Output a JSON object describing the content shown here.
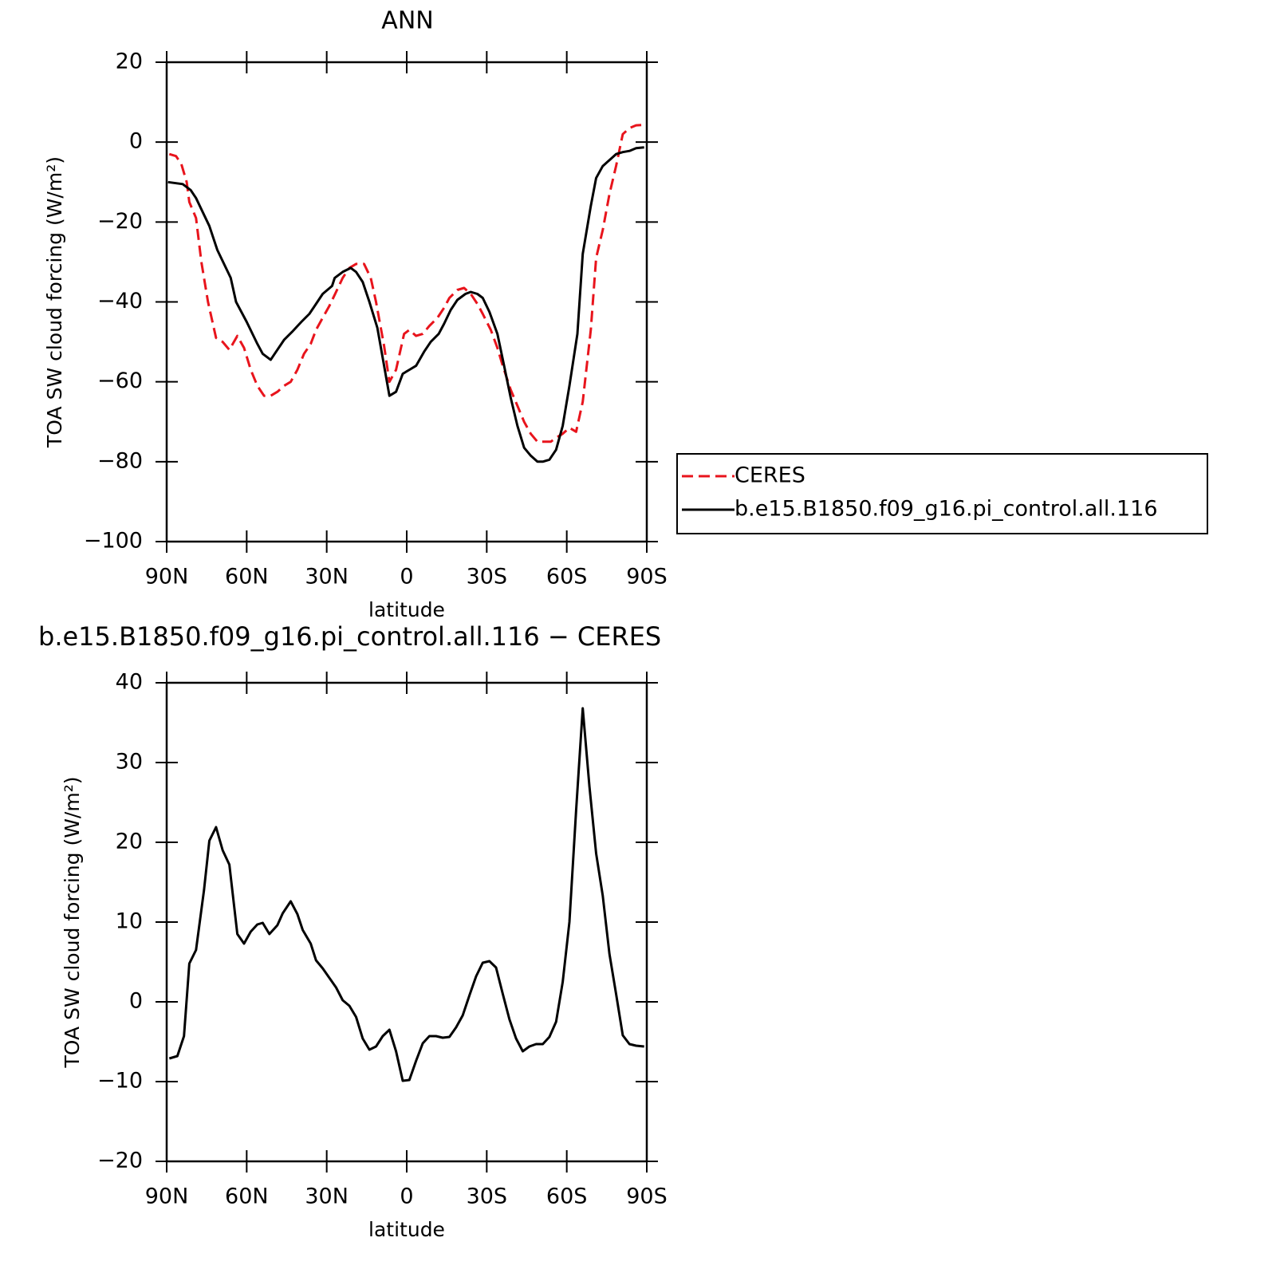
{
  "chart_data": [
    {
      "type": "line",
      "title": "ANN",
      "x_label": "latitude",
      "y_label": "TOA SW cloud forcing (W/m²)",
      "xlim": [
        90,
        -90
      ],
      "xticks": [
        {
          "value": 90,
          "label": "90N"
        },
        {
          "value": 60,
          "label": "60N"
        },
        {
          "value": 30,
          "label": "30N"
        },
        0,
        {
          "value": -30,
          "label": "30S"
        },
        {
          "value": -60,
          "label": "60S"
        },
        {
          "value": -90,
          "label": "90S"
        }
      ],
      "ylim": [
        -100,
        20
      ],
      "yticks": [
        {
          "value": -100,
          "label": "−100"
        },
        {
          "value": -80,
          "label": "−80"
        },
        {
          "value": -60,
          "label": "−60"
        },
        {
          "value": -40,
          "label": "−40"
        },
        {
          "value": -20,
          "label": "−20"
        },
        0,
        20
      ],
      "legend": "right",
      "series": [
        {
          "name": "CERES",
          "color": "#e8141c",
          "dashed": true,
          "x": [
            89,
            86.5,
            84.5,
            82.5,
            81.5,
            79,
            77,
            74.5,
            71.5,
            69,
            66.5,
            63.5,
            61,
            58.5,
            56,
            53.5,
            51,
            48.5,
            46,
            43.5,
            41,
            38.5,
            36,
            34,
            31.5,
            29,
            26.5,
            24,
            21.5,
            19,
            16,
            13.5,
            11.5,
            8.5,
            6.5,
            4,
            1,
            -1,
            -3.5,
            -6,
            -8.5,
            -11.5,
            -14,
            -16,
            -19,
            -21.5,
            -24,
            -26.5,
            -28.5,
            -31.5,
            -34,
            -36,
            -39,
            -41.5,
            -44,
            -46.5,
            -49,
            -51,
            -54,
            -56,
            -58.5,
            -61,
            -63.5,
            -66,
            -69,
            -71,
            -73.5,
            -76,
            -78.5,
            -81,
            -83.5,
            -86,
            -89
          ],
          "values": [
            -3,
            -3.5,
            -5.5,
            -10,
            -15,
            -19,
            -30,
            -40,
            -49,
            -50,
            -52,
            -48.5,
            -51.5,
            -57,
            -61,
            -63.5,
            -63.5,
            -62.5,
            -61,
            -60,
            -57,
            -53,
            -50.5,
            -47,
            -44,
            -41,
            -37.5,
            -34,
            -31.5,
            -30.5,
            -30.5,
            -34,
            -40,
            -51,
            -60,
            -57,
            -48,
            -47,
            -48.5,
            -48,
            -46,
            -44,
            -41.5,
            -39,
            -37,
            -36.5,
            -38,
            -40.5,
            -43,
            -47,
            -51.5,
            -56,
            -62,
            -66,
            -70,
            -73,
            -75,
            -75,
            -75,
            -74,
            -73,
            -71.5,
            -72.5,
            -65,
            -47,
            -29,
            -22,
            -13,
            -6,
            2,
            3.5,
            4.2,
            4.3
          ]
        },
        {
          "name": "b.e15.B1850.f09_g16.pi_control.all.116",
          "color": "#000000",
          "dashed": false,
          "x": [
            89.5,
            84,
            81,
            79,
            74,
            71,
            66,
            64,
            60,
            56,
            54,
            51,
            49,
            46,
            43,
            39.5,
            36.5,
            34,
            31.5,
            28,
            27,
            24,
            21,
            19,
            16.5,
            14,
            11,
            6.5,
            4,
            1.5,
            -1,
            -3.5,
            -6.5,
            -9,
            -12,
            -14,
            -16.5,
            -19,
            -22,
            -24,
            -26.5,
            -28.5,
            -31,
            -34,
            -36.5,
            -39,
            -41.5,
            -44,
            -46.5,
            -49,
            -51,
            -53.5,
            -56,
            -58.5,
            -61,
            -64,
            -66,
            -69,
            -71,
            -73.5,
            -76,
            -78.5,
            -81,
            -83.5,
            -86,
            -89
          ],
          "values": [
            -10,
            -10.5,
            -12,
            -14,
            -21,
            -27,
            -34,
            -40,
            -45,
            -50.5,
            -53,
            -54.5,
            -52.5,
            -49.5,
            -47.5,
            -45,
            -43,
            -40.5,
            -38,
            -36,
            -34,
            -32.5,
            -31.5,
            -32.5,
            -35,
            -40,
            -46.5,
            -63.5,
            -62.5,
            -58,
            -57,
            -56,
            -52.5,
            -50,
            -48,
            -45.5,
            -42,
            -39.5,
            -38,
            -37.5,
            -38,
            -39,
            -42.5,
            -48,
            -56,
            -64,
            -71,
            -76.5,
            -78.5,
            -80,
            -80,
            -79.5,
            -77,
            -71,
            -61,
            -48,
            -28,
            -16,
            -9,
            -6,
            -4.5,
            -3,
            -2.5,
            -2.2,
            -1.5,
            -1.3
          ]
        }
      ]
    },
    {
      "type": "line",
      "title": "b.e15.B1850.f09_g16.pi_control.all.116 − CERES",
      "x_label": "latitude",
      "y_label": "TOA SW cloud forcing (W/m²)",
      "xlim": [
        90,
        -90
      ],
      "xticks": [
        {
          "value": 90,
          "label": "90N"
        },
        {
          "value": 60,
          "label": "60N"
        },
        {
          "value": 30,
          "label": "30N"
        },
        0,
        {
          "value": -30,
          "label": "30S"
        },
        {
          "value": -60,
          "label": "60S"
        },
        {
          "value": -90,
          "label": "90S"
        }
      ],
      "ylim": [
        -20,
        40
      ],
      "yticks": [
        {
          "value": -20,
          "label": "−20"
        },
        {
          "value": -10,
          "label": "−10"
        },
        0,
        10,
        20,
        30,
        40
      ],
      "series": [
        {
          "color": "#000000",
          "dashed": false,
          "x": [
            89,
            86,
            83.5,
            81.5,
            79,
            76,
            74,
            71.5,
            69,
            66.5,
            63.5,
            61,
            58.5,
            56,
            54,
            51.5,
            48.5,
            46.5,
            43.5,
            41,
            39,
            36,
            34,
            31.5,
            29,
            26.5,
            24,
            21.5,
            19,
            16.5,
            14,
            11.5,
            9,
            6.5,
            4,
            1.5,
            -1,
            -3.5,
            -6,
            -8.5,
            -11,
            -13.5,
            -16,
            -18.5,
            -21,
            -23.5,
            -26,
            -28.5,
            -31,
            -33.5,
            -36,
            -38.5,
            -41,
            -43.5,
            -46,
            -48.5,
            -51,
            -53.5,
            -56,
            -58.5,
            -61,
            -63.5,
            -66,
            -68.5,
            -71,
            -73.5,
            -76,
            -78.5,
            -81,
            -83.5,
            -86,
            -89
          ],
          "values": [
            -7.1,
            -6.8,
            -4.3,
            4.8,
            6.5,
            14,
            20.2,
            21.9,
            19,
            17.2,
            8.5,
            7.3,
            8.8,
            9.7,
            9.9,
            8.5,
            9.6,
            11.1,
            12.6,
            11,
            9,
            7.3,
            5.2,
            4.2,
            3,
            1.8,
            0.2,
            -0.5,
            -1.9,
            -4.6,
            -6,
            -5.6,
            -4.3,
            -3.5,
            -6.2,
            -9.9,
            -9.8,
            -7.4,
            -5.2,
            -4.3,
            -4.3,
            -4.5,
            -4.4,
            -3.2,
            -1.7,
            0.8,
            3.2,
            4.9,
            5.1,
            4.3,
            1,
            -2.2,
            -4.6,
            -6.2,
            -5.6,
            -5.3,
            -5.3,
            -4.4,
            -2.5,
            2.5,
            10,
            24,
            36.8,
            27,
            18.6,
            13.3,
            6,
            1,
            -4.2,
            -5.3,
            -5.5,
            -5.6
          ]
        }
      ]
    }
  ]
}
